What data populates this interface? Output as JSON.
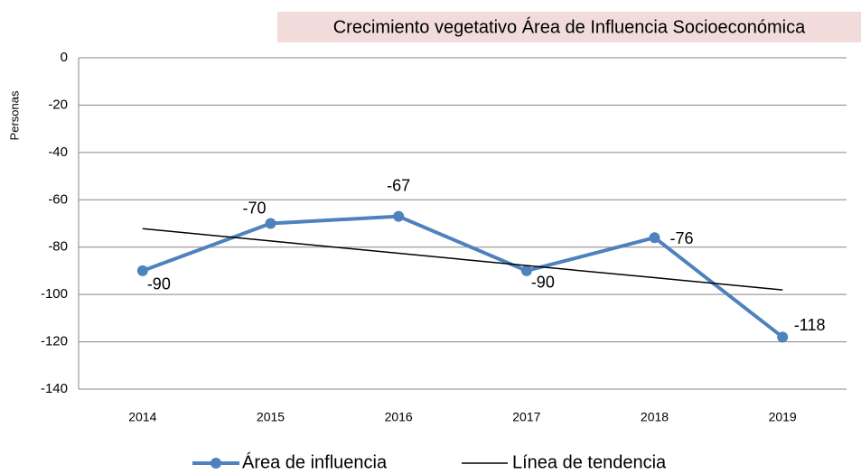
{
  "chart_data": {
    "type": "line",
    "title": "Crecimiento vegetativo Área de Influencia Socioeconómica",
    "y_label": "Personas",
    "categories": [
      "2014",
      "2015",
      "2016",
      "2017",
      "2018",
      "2019"
    ],
    "series": [
      {
        "name": "Área de influencia",
        "color": "#4f81bd",
        "values": [
          -90,
          -70,
          -67,
          -90,
          -76,
          -118
        ]
      },
      {
        "name": "Línea de tendencia",
        "color": "#000000",
        "values": [
          -72.2,
          -77.4,
          -82.6,
          -87.8,
          -92.9,
          -98.1
        ]
      }
    ],
    "ylim": [
      -140,
      0
    ],
    "yticks": [
      0,
      -20,
      -40,
      -60,
      -80,
      -100,
      -120,
      -140
    ],
    "grid": true
  }
}
